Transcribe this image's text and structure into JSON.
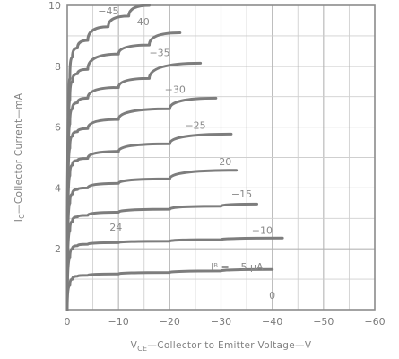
{
  "chart_data": {
    "type": "line",
    "xlabel_main": "V",
    "xlabel_sub": "CE",
    "xlabel_rest": "—Collector to Emitter Voltage—V",
    "ylabel_main": "I",
    "ylabel_sub": "C",
    "ylabel_rest": "—Collector Current—mA",
    "xlim": [
      0,
      -60
    ],
    "ylim": [
      0,
      10
    ],
    "xticks": [
      {
        "value": 0,
        "label": "0"
      },
      {
        "value": -10,
        "label": "−10"
      },
      {
        "value": -20,
        "label": "−20"
      },
      {
        "value": -30,
        "label": "−30"
      },
      {
        "value": -40,
        "label": "−40"
      },
      {
        "value": -50,
        "label": "−50"
      },
      {
        "value": -60,
        "label": "−60"
      }
    ],
    "yticks": [
      {
        "value": 2,
        "label": "2"
      },
      {
        "value": 4,
        "label": "4"
      },
      {
        "value": 6,
        "label": "6"
      },
      {
        "value": 8,
        "label": "8"
      },
      {
        "value": 10,
        "label": "10"
      }
    ],
    "grid": true,
    "series": [
      {
        "name": "I_B = −5 µA",
        "label": "Iᴮ = −5 µA",
        "label_at": [
          -28,
          1.3
        ],
        "x": [
          0,
          -0.5,
          -1,
          -2,
          -4,
          -10,
          -20,
          -30,
          -40
        ],
        "y": [
          0,
          0.8,
          1.0,
          1.1,
          1.13,
          1.17,
          1.22,
          1.27,
          1.32
        ]
      },
      {
        "name": "−10",
        "label": "−10",
        "label_at": [
          -36,
          2.5
        ],
        "x": [
          0,
          -0.5,
          -1,
          -2,
          -4,
          -10,
          -20,
          -30,
          -42
        ],
        "y": [
          0,
          1.7,
          2.0,
          2.1,
          2.15,
          2.2,
          2.25,
          2.3,
          2.35
        ]
      },
      {
        "name": "−15",
        "label": "−15",
        "label_at": [
          -32,
          3.68
        ],
        "x": [
          0,
          -0.5,
          -1,
          -2,
          -4,
          -10,
          -20,
          -30,
          -37
        ],
        "y": [
          0,
          2.6,
          2.9,
          3.05,
          3.1,
          3.2,
          3.3,
          3.4,
          3.47
        ]
      },
      {
        "name": "−20",
        "label": "−20",
        "label_at": [
          -28,
          4.75
        ],
        "x": [
          0,
          -0.5,
          -1,
          -2,
          -4,
          -10,
          -20,
          -33
        ],
        "y": [
          0,
          3.5,
          3.8,
          3.95,
          4.0,
          4.15,
          4.3,
          4.58
        ]
      },
      {
        "name": "−25",
        "label": "−25",
        "label_at": [
          -23,
          5.95
        ],
        "x": [
          0,
          -0.5,
          -1,
          -2,
          -4,
          -10,
          -20,
          -32
        ],
        "y": [
          0,
          4.4,
          4.75,
          4.9,
          4.97,
          5.2,
          5.45,
          5.77
        ]
      },
      {
        "name": "−30",
        "label": "−30",
        "label_at": [
          -19,
          7.13
        ],
        "x": [
          0,
          -0.5,
          -1,
          -2,
          -4,
          -10,
          -20,
          -29
        ],
        "y": [
          0,
          5.3,
          5.7,
          5.85,
          5.95,
          6.25,
          6.6,
          6.95
        ]
      },
      {
        "name": "−35",
        "label": "−35",
        "label_at": [
          -16,
          8.33
        ],
        "x": [
          0,
          -0.5,
          -1,
          -2,
          -4,
          -10,
          -16,
          -26
        ],
        "y": [
          0,
          6.1,
          6.6,
          6.8,
          6.95,
          7.3,
          7.6,
          8.1
        ]
      },
      {
        "name": "−40",
        "label": "−40",
        "label_at": [
          -12,
          9.35
        ],
        "x": [
          0,
          -0.5,
          -1,
          -2,
          -4,
          -10,
          -16,
          -22
        ],
        "y": [
          0,
          6.9,
          7.5,
          7.75,
          7.9,
          8.4,
          8.7,
          9.1
        ]
      },
      {
        "name": "−45",
        "label": "−45",
        "label_at": [
          -6,
          9.7
        ],
        "x": [
          0,
          -0.5,
          -1,
          -2,
          -4,
          -8,
          -12,
          -16
        ],
        "y": [
          0,
          7.6,
          8.3,
          8.6,
          8.85,
          9.3,
          9.65,
          10.0
        ]
      }
    ],
    "annotations": [
      {
        "text": "0",
        "at": [
          -40,
          0.35
        ]
      },
      {
        "text": "24",
        "at": [
          -9.5,
          2.6
        ]
      }
    ]
  }
}
